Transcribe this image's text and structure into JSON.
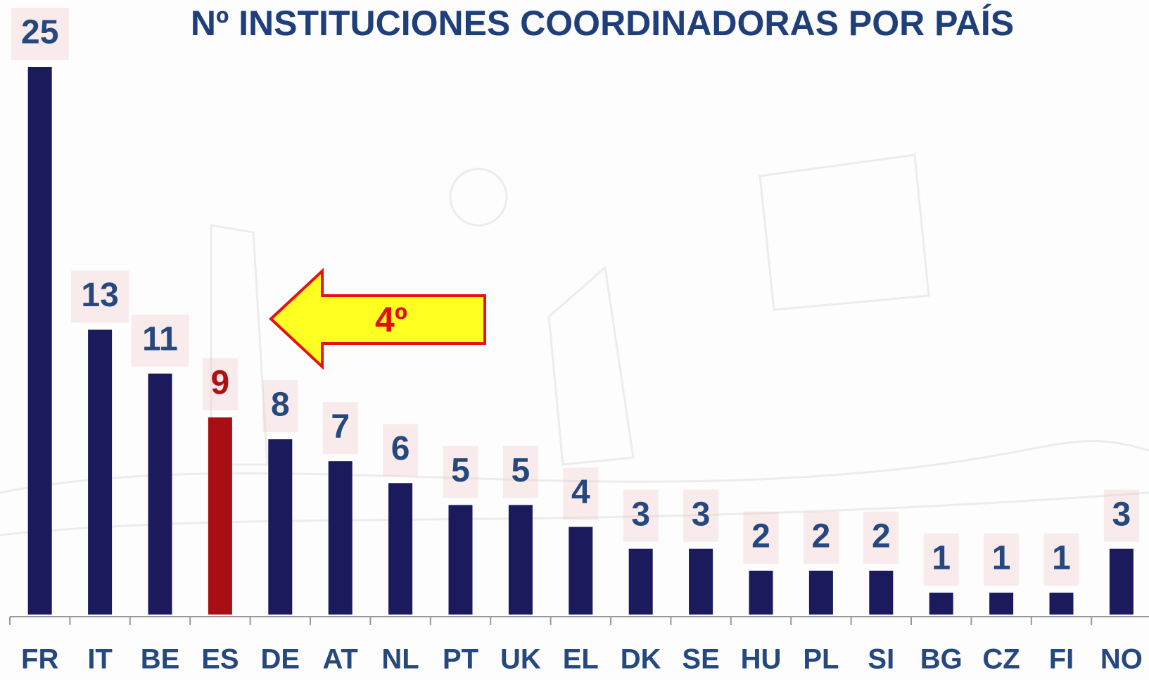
{
  "chart_data": {
    "type": "bar",
    "title": "Nº INSTITUCIONES COORDINADORAS POR PAÍS",
    "categories": [
      "FR",
      "IT",
      "BE",
      "ES",
      "DE",
      "AT",
      "NL",
      "PT",
      "UK",
      "EL",
      "DK",
      "SE",
      "HU",
      "PL",
      "SI",
      "BG",
      "CZ",
      "FI",
      "NO"
    ],
    "values": [
      25,
      13,
      11,
      9,
      8,
      7,
      6,
      5,
      5,
      4,
      3,
      3,
      2,
      2,
      2,
      1,
      1,
      1,
      3
    ],
    "colors": [
      "#1a1a5c",
      "#1a1a5c",
      "#1a1a5c",
      "#a80f14",
      "#1a1a5c",
      "#1a1a5c",
      "#1a1a5c",
      "#1a1a5c",
      "#1a1a5c",
      "#1a1a5c",
      "#1a1a5c",
      "#1a1a5c",
      "#1a1a5c",
      "#1a1a5c",
      "#1a1a5c",
      "#1a1a5c",
      "#1a1a5c",
      "#1a1a5c",
      "#1a1a5c"
    ],
    "label_colors": [
      "#25487e",
      "#25487e",
      "#25487e",
      "#b01015",
      "#25487e",
      "#25487e",
      "#25487e",
      "#25487e",
      "#25487e",
      "#25487e",
      "#25487e",
      "#25487e",
      "#25487e",
      "#25487e",
      "#25487e",
      "#25487e",
      "#25487e",
      "#25487e",
      "#25487e"
    ],
    "ylim": [
      0,
      25
    ],
    "annotation": "4º"
  }
}
